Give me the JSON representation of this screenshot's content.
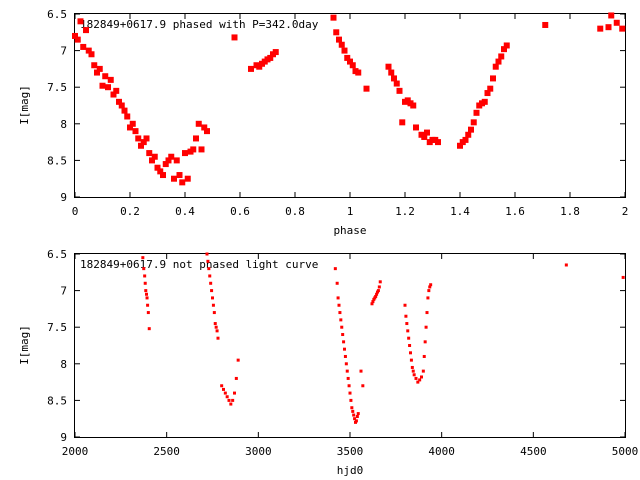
{
  "chart_data": [
    {
      "type": "scatter",
      "title": "182849+0617.9 phased with P=342.0day",
      "xlabel": "phase",
      "ylabel": "I[mag]",
      "xlim": [
        0,
        2
      ],
      "ylim": [
        6.5,
        9
      ],
      "y_inverted": true,
      "grid": false,
      "xticks": [
        "0",
        "0.2",
        "0.4",
        "0.6",
        "0.8",
        "1",
        "1.2",
        "1.4",
        "1.6",
        "1.8",
        "2"
      ],
      "yticks": [
        "6.5",
        "7",
        "7.5",
        "8",
        "8.5",
        "9"
      ],
      "marker_color": "#ff0000",
      "series": [
        {
          "x": [
            0.0,
            0.01,
            0.02,
            0.03,
            0.04,
            0.05,
            0.06,
            0.07,
            0.08,
            0.09,
            0.1,
            0.11,
            0.12,
            0.13,
            0.14,
            0.15,
            0.16,
            0.17,
            0.18,
            0.19,
            0.2,
            0.21,
            0.22,
            0.23,
            0.24,
            0.25,
            0.26,
            0.27,
            0.28,
            0.29,
            0.3,
            0.31,
            0.32,
            0.33,
            0.34,
            0.35,
            0.36,
            0.37,
            0.38,
            0.39,
            0.4,
            0.41,
            0.42,
            0.43,
            0.44,
            0.45,
            0.46,
            0.47,
            0.48,
            0.58,
            0.64,
            0.66,
            0.67,
            0.68,
            0.69,
            0.7,
            0.71,
            0.72,
            0.73,
            0.94,
            0.95,
            0.96,
            0.97,
            0.98,
            0.99,
            1.0,
            1.01,
            1.02,
            1.03,
            1.06,
            1.14,
            1.15,
            1.16,
            1.17,
            1.18,
            1.19,
            1.2,
            1.21,
            1.22,
            1.23,
            1.24,
            1.26,
            1.27,
            1.28,
            1.29,
            1.3,
            1.31,
            1.32,
            1.4,
            1.41,
            1.42,
            1.43,
            1.44,
            1.45,
            1.46,
            1.47,
            1.48,
            1.49,
            1.5,
            1.51,
            1.52,
            1.53,
            1.54,
            1.55,
            1.56,
            1.57,
            1.71,
            1.91,
            1.94,
            1.95,
            1.97,
            1.99
          ],
          "y": [
            6.8,
            6.85,
            6.6,
            6.95,
            6.72,
            7.0,
            7.05,
            7.2,
            7.3,
            7.25,
            7.48,
            7.35,
            7.5,
            7.4,
            7.6,
            7.55,
            7.7,
            7.75,
            7.82,
            7.9,
            8.05,
            8.0,
            8.1,
            8.2,
            8.3,
            8.25,
            8.2,
            8.4,
            8.5,
            8.45,
            8.6,
            8.65,
            8.7,
            8.55,
            8.5,
            8.45,
            8.75,
            8.5,
            8.7,
            8.8,
            8.4,
            8.75,
            8.38,
            8.35,
            8.2,
            8.0,
            8.35,
            8.05,
            8.1,
            6.82,
            7.25,
            7.2,
            7.22,
            7.18,
            7.15,
            7.12,
            7.1,
            7.05,
            7.02,
            6.55,
            6.75,
            6.85,
            6.92,
            7.0,
            7.1,
            7.15,
            7.2,
            7.28,
            7.3,
            7.52,
            7.22,
            7.3,
            7.38,
            7.45,
            7.55,
            7.98,
            7.7,
            7.68,
            7.72,
            7.75,
            8.05,
            8.15,
            8.18,
            8.12,
            8.25,
            8.22,
            8.22,
            8.25,
            8.3,
            8.25,
            8.22,
            8.15,
            8.08,
            7.98,
            7.85,
            7.75,
            7.72,
            7.7,
            7.58,
            7.52,
            7.38,
            7.22,
            7.15,
            7.08,
            6.98,
            6.93,
            6.65,
            6.7,
            6.68,
            6.52,
            6.62,
            6.7
          ]
        }
      ]
    },
    {
      "type": "scatter",
      "title": "182849+0617.9 not phased light curve",
      "xlabel": "hjd0",
      "ylabel": "I[mag]",
      "xlim": [
        2000,
        5000
      ],
      "ylim": [
        6.5,
        9
      ],
      "y_inverted": true,
      "grid": false,
      "xticks": [
        "2000",
        "2500",
        "3000",
        "3500",
        "4000",
        "4500",
        "5000"
      ],
      "yticks": [
        "6.5",
        "7",
        "7.5",
        "8",
        "8.5",
        "9"
      ],
      "marker_color": "#ff0000",
      "series": [
        {
          "x": [
            2370,
            2375,
            2380,
            2383,
            2386,
            2390,
            2393,
            2396,
            2400,
            2405,
            2720,
            2725,
            2730,
            2735,
            2740,
            2745,
            2750,
            2755,
            2760,
            2765,
            2770,
            2775,
            2780,
            2800,
            2810,
            2820,
            2830,
            2840,
            2850,
            2860,
            2870,
            2880,
            2890,
            3420,
            3430,
            3435,
            3440,
            3445,
            3450,
            3455,
            3460,
            3465,
            3470,
            3475,
            3480,
            3485,
            3490,
            3495,
            3500,
            3505,
            3510,
            3515,
            3520,
            3525,
            3530,
            3535,
            3540,
            3545,
            3560,
            3570,
            3620,
            3625,
            3630,
            3635,
            3640,
            3645,
            3650,
            3655,
            3660,
            3665,
            3800,
            3805,
            3810,
            3815,
            3820,
            3825,
            3830,
            3835,
            3840,
            3845,
            3850,
            3860,
            3870,
            3880,
            3890,
            3900,
            3905,
            3910,
            3915,
            3920,
            3925,
            3930,
            3935,
            3940,
            4680,
            4990
          ],
          "y": [
            6.55,
            6.7,
            6.8,
            6.9,
            7.0,
            7.05,
            7.1,
            7.2,
            7.3,
            7.52,
            6.5,
            6.6,
            6.7,
            6.8,
            6.9,
            7.0,
            7.1,
            7.2,
            7.3,
            7.45,
            7.5,
            7.55,
            7.65,
            8.3,
            8.35,
            8.4,
            8.45,
            8.5,
            8.55,
            8.5,
            8.4,
            8.2,
            7.95,
            6.7,
            6.9,
            7.1,
            7.2,
            7.3,
            7.4,
            7.5,
            7.6,
            7.7,
            7.8,
            7.9,
            8.0,
            8.1,
            8.2,
            8.3,
            8.4,
            8.5,
            8.6,
            8.65,
            8.7,
            8.75,
            8.8,
            8.78,
            8.72,
            8.68,
            8.1,
            8.3,
            7.18,
            7.15,
            7.12,
            7.1,
            7.08,
            7.05,
            7.02,
            7.0,
            6.95,
            6.88,
            7.2,
            7.35,
            7.45,
            7.55,
            7.65,
            7.75,
            7.85,
            7.95,
            8.05,
            8.1,
            8.15,
            8.2,
            8.25,
            8.22,
            8.18,
            8.1,
            7.9,
            7.7,
            7.5,
            7.3,
            7.1,
            7.0,
            6.95,
            6.92,
            6.65,
            6.82
          ]
        }
      ]
    }
  ]
}
